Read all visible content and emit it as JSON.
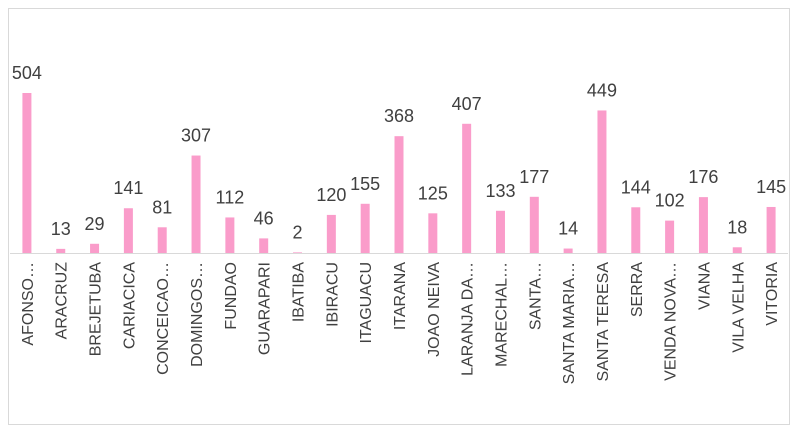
{
  "chart_data": {
    "type": "bar",
    "categories": [
      "AFONSO…",
      "ARACRUZ",
      "BREJETUBA",
      "CARIACICA",
      "CONCEICAO…",
      "DOMINGOS…",
      "FUNDAO",
      "GUARAPARI",
      "IBATIBA",
      "IBIRACU",
      "ITAGUACU",
      "ITARANA",
      "JOAO NEIVA",
      "LARANJA DA…",
      "MARECHAL…",
      "SANTA…",
      "SANTA MARIA…",
      "SANTA TERESA",
      "SERRA",
      "VENDA NOVA…",
      "VIANA",
      "VILA VELHA",
      "VITORIA"
    ],
    "values": [
      504,
      13,
      29,
      141,
      81,
      307,
      112,
      46,
      2,
      120,
      155,
      368,
      125,
      407,
      133,
      177,
      14,
      449,
      144,
      102,
      176,
      18,
      145
    ],
    "color": "#fa9cca"
  }
}
